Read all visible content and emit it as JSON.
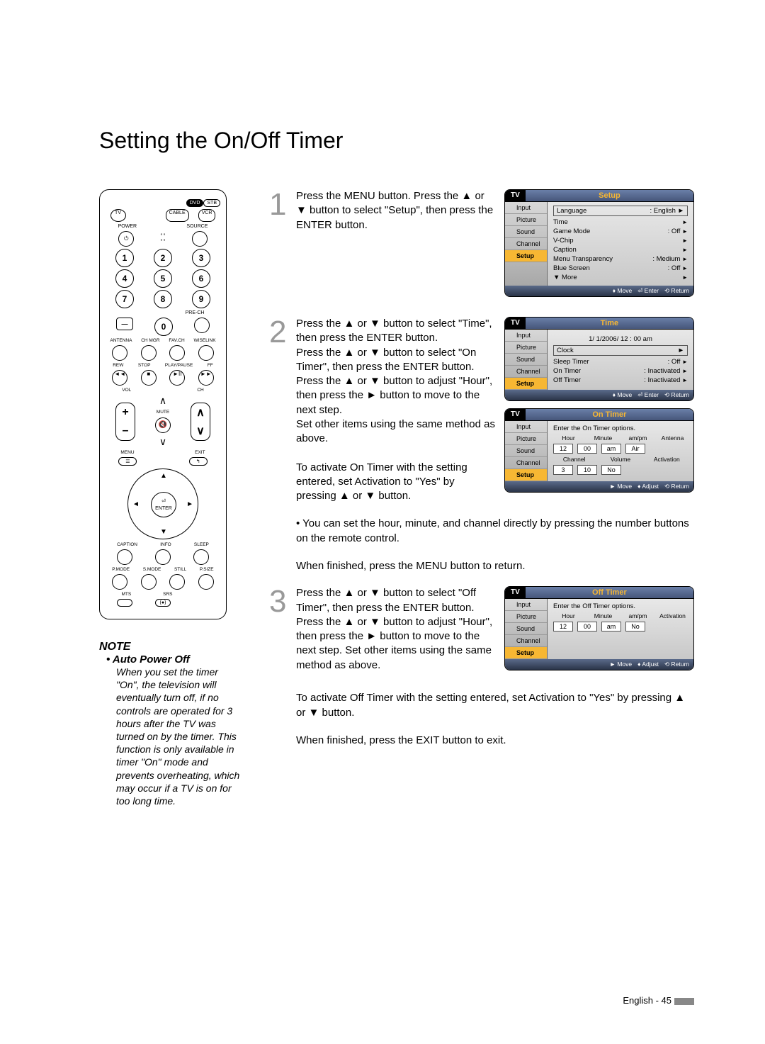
{
  "title": "Setting the On/Off Timer",
  "remote": {
    "top_labels": {
      "dvd": "DVD",
      "stb": "STB",
      "tv": "TV",
      "cable": "CABLE",
      "vcr": "VCR"
    },
    "power": "POWER",
    "source": "SOURCE",
    "nums": [
      "1",
      "2",
      "3",
      "4",
      "5",
      "6",
      "7",
      "8",
      "9",
      "0"
    ],
    "dash": "—",
    "prech": "PRE-CH",
    "row_a": [
      "ANTENNA",
      "CH MGR",
      "FAV.CH",
      "WISELINK"
    ],
    "row_b": [
      "REW",
      "STOP",
      "PLAY/PAUSE",
      "FF"
    ],
    "vol": "VOL",
    "ch": "CH",
    "mute": "MUTE",
    "menu": "MENU",
    "exit": "EXIT",
    "enter": "ENTER",
    "row_c": [
      "CAPTION",
      "INFO",
      "SLEEP"
    ],
    "row_d": [
      "P.MODE",
      "S.MODE",
      "STILL",
      "P.SIZE"
    ],
    "row_e": [
      "MTS",
      "SRS"
    ]
  },
  "note": {
    "heading": "NOTE",
    "bullet": "• Auto Power Off",
    "text": "When you set the timer \"On\", the television will eventually turn off, if no controls are operated for 3 hours after the TV was turned on by the timer. This function is only available in timer \"On\" mode and prevents overheating, which may occur if a TV is on for too long time."
  },
  "steps": {
    "s1": {
      "num": "1",
      "text": "Press the MENU button. Press the ▲ or ▼ button to select \"Setup\", then press the ENTER button."
    },
    "s2": {
      "num": "2",
      "text": "Press the ▲ or ▼ button to select \"Time\", then press the ENTER button.\nPress the ▲ or ▼ button to select \"On Timer\", then press the ENTER button.\nPress the ▲ or ▼ button to adjust \"Hour\", then press the ► button to move to the next step.\nSet other items using the same method as above.\n\nTo activate On Timer with the setting entered, set Activation to \"Yes\" by pressing ▲ or ▼ button."
    },
    "s2_after1": "• You can set the hour, minute, and channel directly by pressing the number buttons on the remote control.",
    "s2_after2": "When finished, press the MENU button to return.",
    "s3": {
      "num": "3",
      "text": "Press the ▲ or ▼ button to select \"Off Timer\", then press the ENTER button.\nPress the ▲ or ▼ button to adjust \"Hour\", then press the ► button to move to the next step. Set other items using the same method as above."
    },
    "s3_after1": "To activate Off Timer with the setting entered, set Activation to \"Yes\" by pressing ▲ or ▼ button.",
    "s3_after2": "When finished, press the EXIT button to exit."
  },
  "osd": {
    "tabs": [
      "Input",
      "Picture",
      "Sound",
      "Channel",
      "Setup"
    ],
    "setup": {
      "title": "Setup",
      "items": [
        {
          "l": "Language",
          "v": ": English"
        },
        {
          "l": "Time",
          "v": ""
        },
        {
          "l": "Game Mode",
          "v": ": Off"
        },
        {
          "l": "V-Chip",
          "v": ""
        },
        {
          "l": "Caption",
          "v": ""
        },
        {
          "l": "Menu Transparency",
          "v": ": Medium"
        },
        {
          "l": "Blue Screen",
          "v": ": Off"
        },
        {
          "l": "▼ More",
          "v": ""
        }
      ],
      "framed_idx": 0
    },
    "time": {
      "title": "Time",
      "clock": "1/  1/2006/ 12 : 00 am",
      "items": [
        {
          "l": "Clock",
          "v": ""
        },
        {
          "l": "Sleep Timer",
          "v": ": Off"
        },
        {
          "l": "On Timer",
          "v": ": Inactivated"
        },
        {
          "l": "Off Timer",
          "v": ": Inactivated"
        }
      ]
    },
    "ontimer": {
      "title": "On Timer",
      "hint": "Enter the On Timer options.",
      "hdr1": [
        "Hour",
        "Minute",
        "am/pm",
        "Antenna"
      ],
      "row1": [
        "12",
        "00",
        "am",
        "Air"
      ],
      "hdr2": [
        "Channel",
        "Volume",
        "Activation"
      ],
      "row2": [
        "3",
        "10",
        "No"
      ]
    },
    "offtimer": {
      "title": "Off Timer",
      "hint": "Enter the Off Timer options.",
      "hdr": [
        "Hour",
        "Minute",
        "am/pm",
        "Activation"
      ],
      "row": [
        "12",
        "00",
        "am",
        "No"
      ]
    },
    "foot1": {
      "a": "♦ Move",
      "b": "⏎ Enter",
      "c": "⟲ Return"
    },
    "foot2": {
      "a": "► Move",
      "b": "♦ Adjust",
      "c": "⟲ Return"
    }
  },
  "footer": "English - 45",
  "colors": {
    "accent": "#f7b733",
    "panel1": "#6a7fa8",
    "panel2": "#46567a"
  }
}
